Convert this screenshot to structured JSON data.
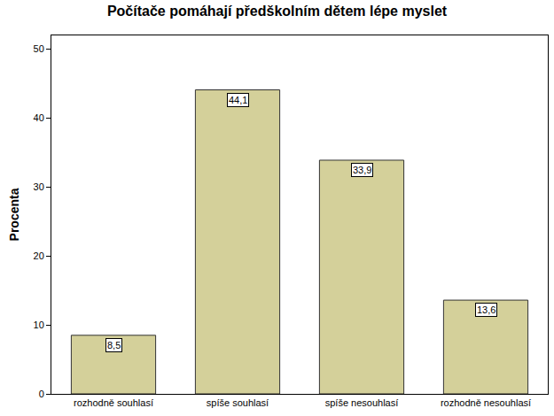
{
  "chart_data": {
    "type": "bar",
    "title": "Počítače pomáhají předškolním dětem lépe myslet",
    "y_label": "Procenta",
    "categories": [
      "rozhodně souhlasí",
      "spíše souhlasí",
      "spíše nesouhlasí",
      "rozhodně nesouhlasí"
    ],
    "values": [
      8.5,
      44.1,
      33.9,
      13.6
    ],
    "value_labels": [
      "8,5",
      "44,1",
      "33,9",
      "13,6"
    ],
    "color": "#d4d09a",
    "ylim": [
      0,
      52
    ],
    "yticks": [
      0,
      10,
      20,
      30,
      40,
      50
    ],
    "grid": false,
    "data_labels": true
  }
}
